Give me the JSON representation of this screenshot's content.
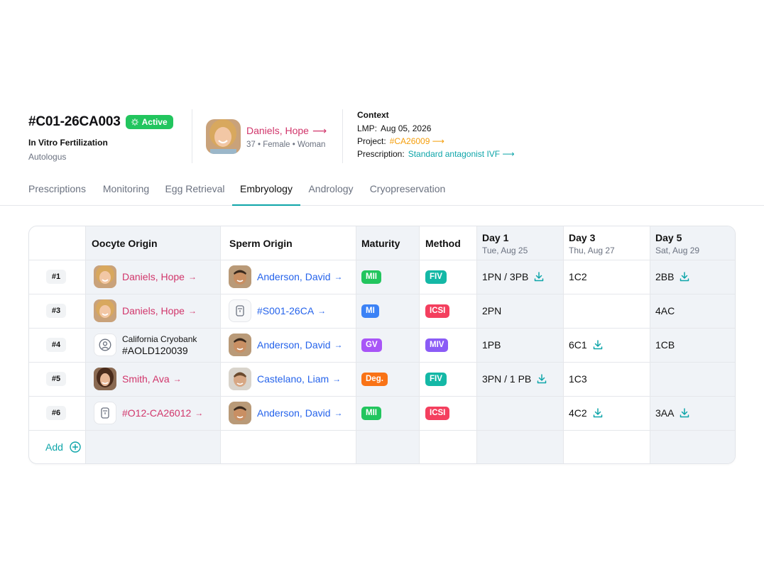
{
  "case": {
    "id": "#C01-26CA003",
    "status": "Active",
    "type": "In Vitro Fertilization",
    "subtype": "Autologus"
  },
  "patient": {
    "name": "Daniels, Hope",
    "meta": "37 • Female • Woman"
  },
  "context": {
    "title": "Context",
    "lmp_label": "LMP:",
    "lmp_value": "Aug 05, 2026",
    "project_label": "Project:",
    "project_value": "#CA26009",
    "prescription_label": "Prescription:",
    "prescription_value": "Standard antagonist IVF"
  },
  "tabs": [
    {
      "label": "Prescriptions"
    },
    {
      "label": "Monitoring"
    },
    {
      "label": "Egg Retrieval"
    },
    {
      "label": "Embryology",
      "active": true
    },
    {
      "label": "Andrology"
    },
    {
      "label": "Cryopreservation"
    }
  ],
  "table": {
    "headers": {
      "oocyte": "Oocyte Origin",
      "sperm": "Sperm Origin",
      "maturity": "Maturity",
      "method": "Method",
      "day1": "Day 1",
      "day1_date": "Tue, Aug 25",
      "day3": "Day 3",
      "day3_date": "Thu, Aug 27",
      "day5": "Day 5",
      "day5_date": "Sat, Aug 29"
    },
    "rows": [
      {
        "num": "#1",
        "oocyte": "Daniels, Hope",
        "sperm": "Anderson, David",
        "maturity": "MII",
        "method": "FIV",
        "day1": "1PN / 3PB",
        "day3": "1C2",
        "day5": "2BB"
      },
      {
        "num": "#3",
        "oocyte": "Daniels, Hope",
        "sperm": "#S001-26CA",
        "maturity": "MI",
        "method": "ICSI",
        "day1": "2PN",
        "day3": "",
        "day5": "4AC"
      },
      {
        "num": "#4",
        "oocyte_bank": "California Cryobank",
        "oocyte": "#AOLD120039",
        "sperm": "Anderson, David",
        "maturity": "GV",
        "method": "MIV",
        "day1": "1PB",
        "day3": "6C1",
        "day5": "1CB"
      },
      {
        "num": "#5",
        "oocyte": "Smith, Ava",
        "sperm": "Castelano, Liam",
        "maturity": "Deg.",
        "method": "FIV",
        "day1": "3PN / 1 PB",
        "day3": "1C3",
        "day5": ""
      },
      {
        "num": "#6",
        "oocyte": "#O12-CA26012",
        "sperm": "Anderson, David",
        "maturity": "MII",
        "method": "ICSI",
        "day1": "",
        "day3": "4C2",
        "day5": "3AA"
      }
    ],
    "add_label": "Add"
  },
  "colors": {
    "active": "#22c55e",
    "pink": "#d1366b",
    "blue": "#2563eb",
    "teal": "#0ea5a9",
    "orange": "#f59e0b",
    "mii": "#22c55e",
    "mi": "#3b82f6",
    "gv": "#a855f7",
    "deg": "#f97316",
    "fiv": "#14b8a6",
    "icsi": "#f43f5e",
    "miv": "#8b5cf6"
  }
}
